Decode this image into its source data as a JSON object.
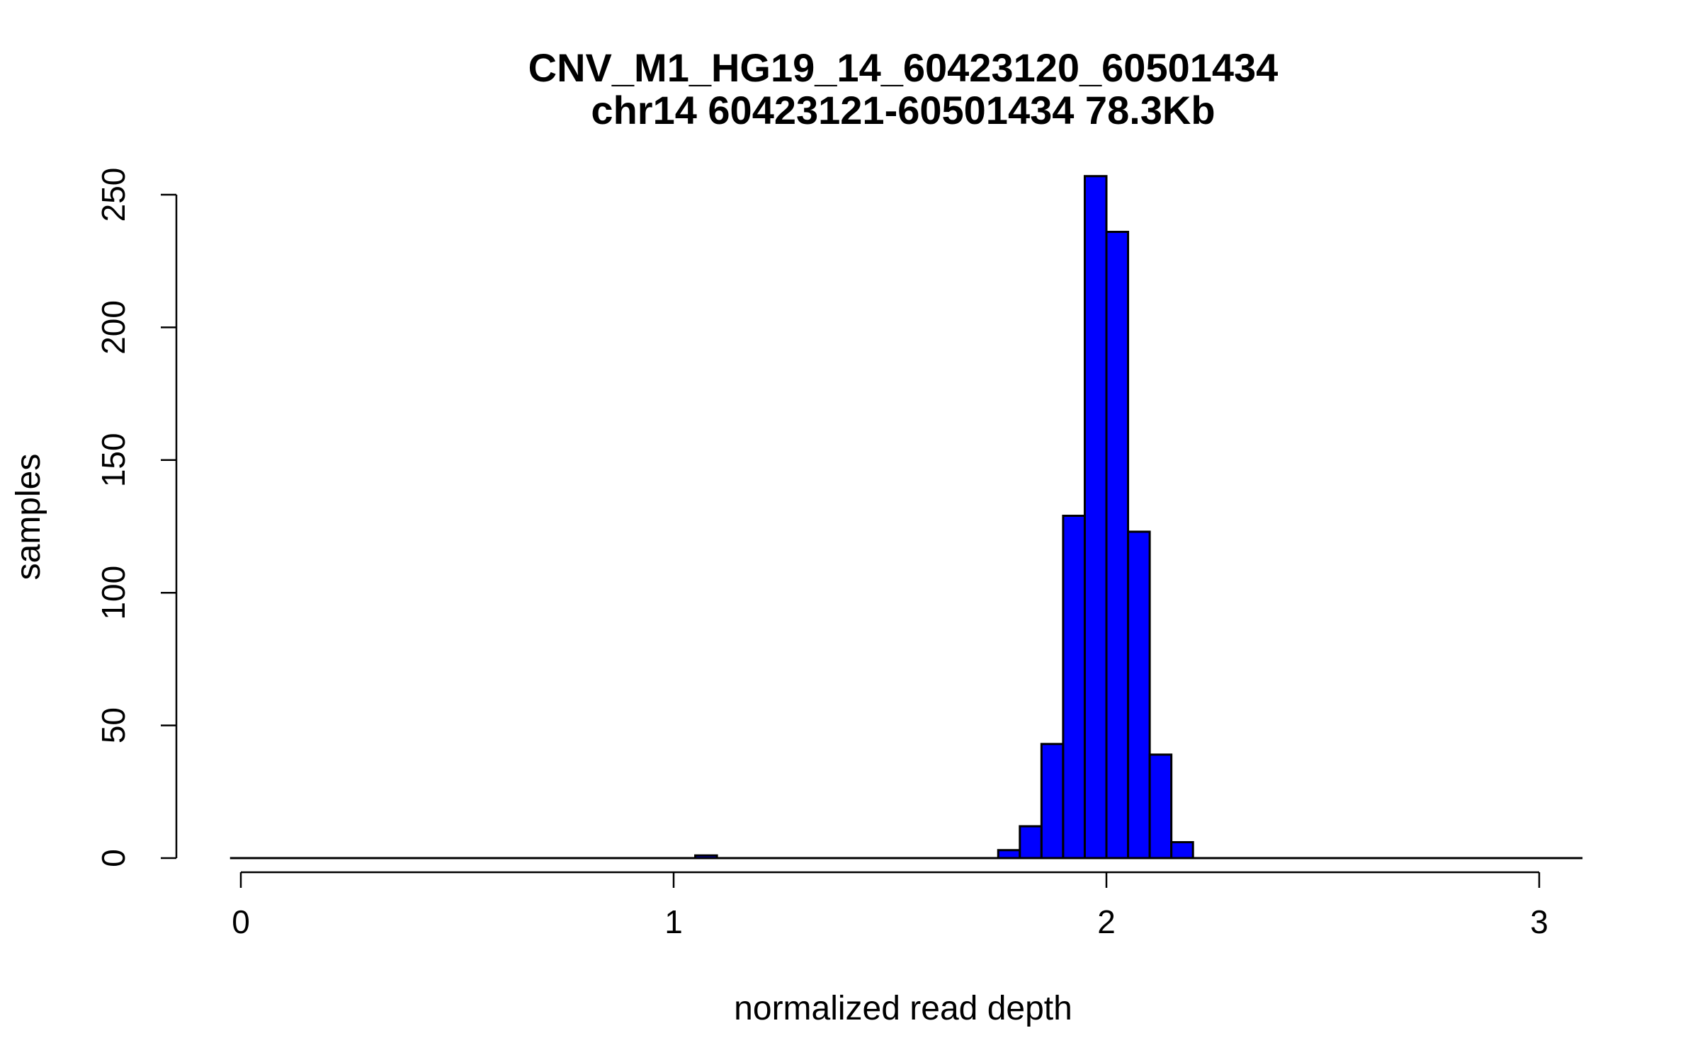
{
  "chart_data": {
    "type": "bar",
    "title": "CNV_M1_HG19_14_60423120_60501434",
    "subtitle": "chr14 60423121-60501434 78.3Kb",
    "xlabel": "normalized read depth",
    "ylabel": "samples",
    "xlim": [
      0,
      3
    ],
    "ylim": [
      0,
      250
    ],
    "x_ticks": [
      "0",
      "1",
      "2",
      "3"
    ],
    "y_ticks": [
      "0",
      "50",
      "100",
      "150",
      "200",
      "250"
    ],
    "bar_color": "#0000ff",
    "bar_edge_color": "#000000",
    "bin_width": 0.05,
    "bins": [
      {
        "x0": -0.05,
        "x1": 0.0,
        "count": 0
      },
      {
        "x0": 1.05,
        "x1": 1.1,
        "count": 1
      },
      {
        "x0": 1.75,
        "x1": 1.8,
        "count": 3
      },
      {
        "x0": 1.8,
        "x1": 1.85,
        "count": 12
      },
      {
        "x0": 1.85,
        "x1": 1.9,
        "count": 43
      },
      {
        "x0": 1.9,
        "x1": 1.95,
        "count": 129
      },
      {
        "x0": 1.95,
        "x1": 2.0,
        "count": 257
      },
      {
        "x0": 2.0,
        "x1": 2.05,
        "count": 236
      },
      {
        "x0": 2.05,
        "x1": 2.1,
        "count": 123
      },
      {
        "x0": 2.1,
        "x1": 2.15,
        "count": 39
      },
      {
        "x0": 2.15,
        "x1": 2.2,
        "count": 6
      }
    ],
    "baseline_range": [
      -0.025,
      3.1
    ],
    "grid": false,
    "legend": "none"
  }
}
